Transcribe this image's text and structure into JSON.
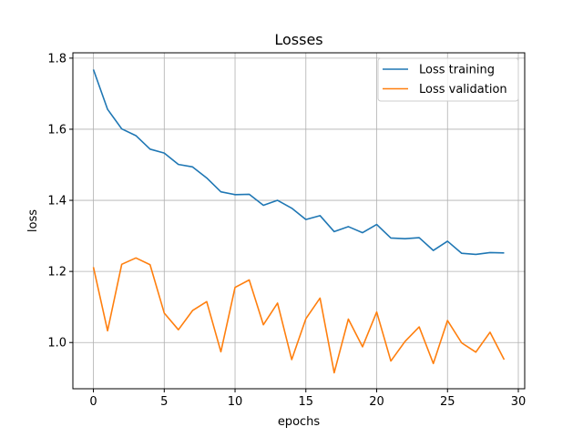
{
  "chart_data": {
    "type": "line",
    "title": "Losses",
    "xlabel": "epochs",
    "ylabel": "loss",
    "xlim": [
      -1.45,
      30.45
    ],
    "ylim": [
      0.87,
      1.815
    ],
    "xticks": [
      0,
      5,
      10,
      15,
      20,
      25,
      30
    ],
    "yticks": [
      1.0,
      1.2,
      1.4,
      1.6,
      1.8
    ],
    "xtick_labels": [
      "0",
      "5",
      "10",
      "15",
      "20",
      "25",
      "30"
    ],
    "ytick_labels": [
      "1.0",
      "1.2",
      "1.4",
      "1.6",
      "1.8"
    ],
    "grid": true,
    "legend_position": "top-right",
    "x": [
      0,
      1,
      2,
      3,
      4,
      5,
      6,
      7,
      8,
      9,
      10,
      11,
      12,
      13,
      14,
      15,
      16,
      17,
      18,
      19,
      20,
      21,
      22,
      23,
      24,
      25,
      26,
      27,
      28,
      29
    ],
    "series": [
      {
        "name": "Loss training",
        "color": "#1f77b4",
        "values": [
          1.768,
          1.656,
          1.601,
          1.582,
          1.544,
          1.533,
          1.501,
          1.494,
          1.463,
          1.424,
          1.416,
          1.417,
          1.386,
          1.4,
          1.378,
          1.346,
          1.357,
          1.312,
          1.326,
          1.309,
          1.332,
          1.294,
          1.292,
          1.295,
          1.259,
          1.285,
          1.251,
          1.248,
          1.253,
          1.252
        ]
      },
      {
        "name": "Loss validation",
        "color": "#ff7f0e",
        "values": [
          1.212,
          1.033,
          1.22,
          1.238,
          1.219,
          1.083,
          1.036,
          1.09,
          1.115,
          0.974,
          1.155,
          1.176,
          1.05,
          1.111,
          0.952,
          1.067,
          1.125,
          0.915,
          1.066,
          0.988,
          1.086,
          0.948,
          1.003,
          1.044,
          0.941,
          1.062,
          0.999,
          0.973,
          1.029,
          0.952
        ]
      }
    ]
  }
}
